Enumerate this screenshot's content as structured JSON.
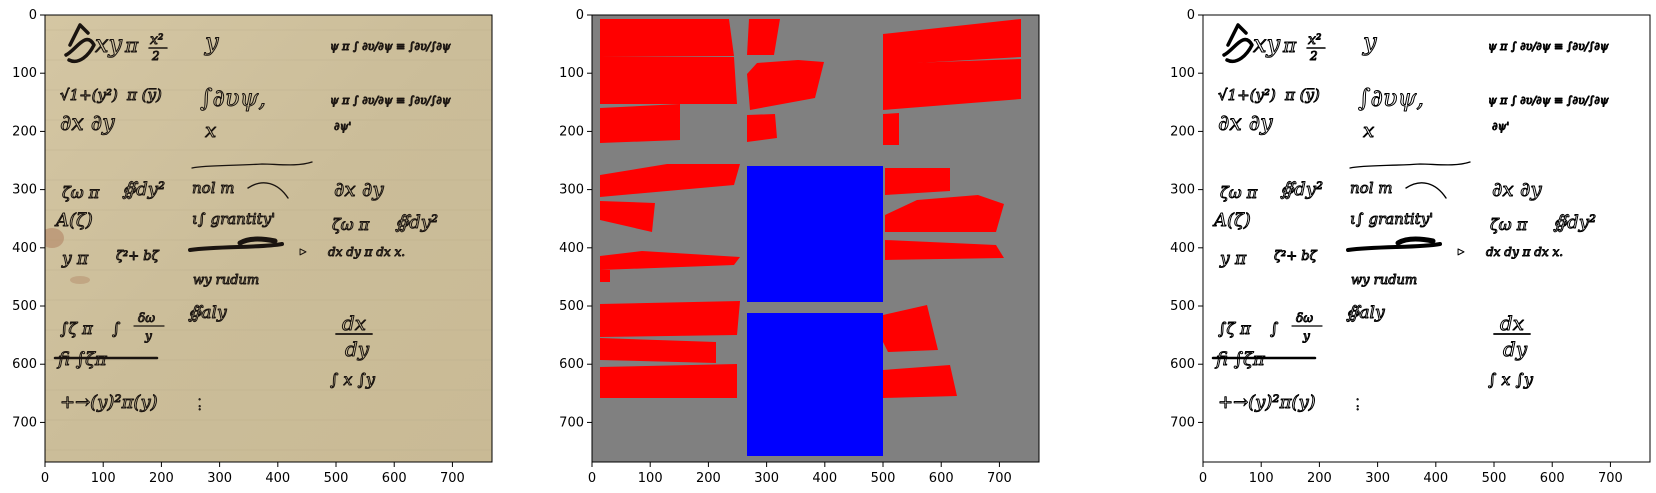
{
  "figure": {
    "panels": [
      {
        "id": "original",
        "x_ticks": [
          "0",
          "100",
          "200",
          "300",
          "400",
          "500",
          "600",
          "700"
        ],
        "y_ticks": [
          "0",
          "100",
          "200",
          "300",
          "400",
          "500",
          "600",
          "700"
        ]
      },
      {
        "id": "mask",
        "x_ticks": [
          "0",
          "100",
          "200",
          "300",
          "400",
          "500",
          "600",
          "700"
        ],
        "y_ticks": [
          "0",
          "100",
          "200",
          "300",
          "400",
          "500",
          "600",
          "700"
        ]
      },
      {
        "id": "binarized",
        "x_ticks": [
          "0",
          "100",
          "200",
          "300",
          "400",
          "500",
          "600",
          "700"
        ],
        "y_ticks": [
          "0",
          "100",
          "200",
          "300",
          "400",
          "500",
          "600",
          "700"
        ]
      }
    ],
    "colors": {
      "parchment": "#cdbf9c",
      "mask_background": "#808080",
      "text_region": "#ff0000",
      "figure_region": "#0000ff",
      "ink": "#1a1410"
    }
  }
}
